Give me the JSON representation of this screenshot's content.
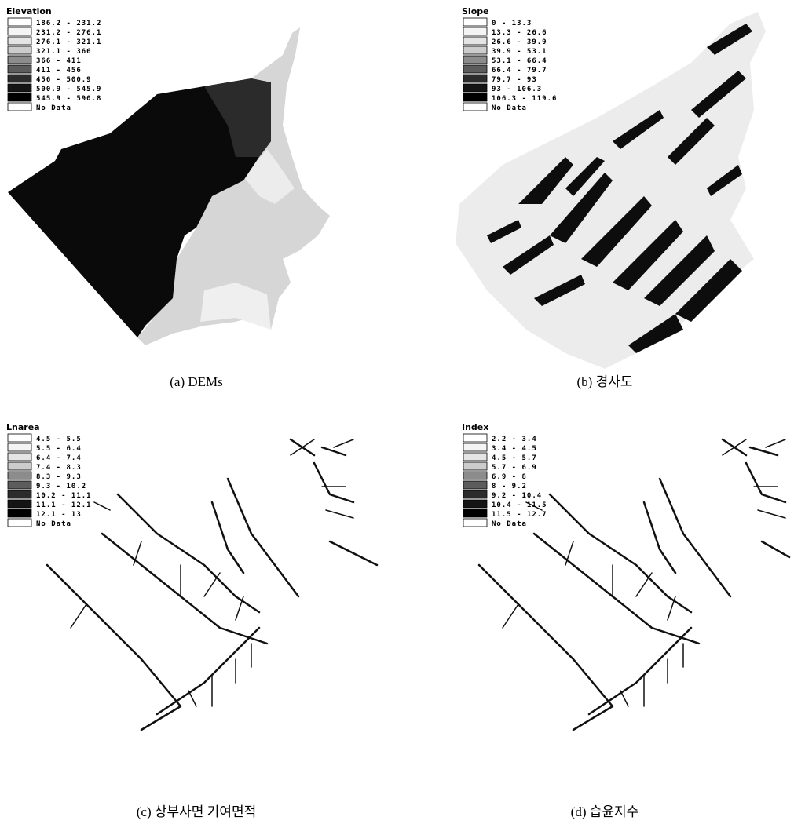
{
  "panels": [
    {
      "legend": {
        "title": "Elevation",
        "items": [
          {
            "label": "186.2 - 231.2",
            "color": "#ffffff"
          },
          {
            "label": "231.2 - 276.1",
            "color": "#f4f4f4"
          },
          {
            "label": "276.1 - 321.1",
            "color": "#e4e4e4"
          },
          {
            "label": "321.1 - 366",
            "color": "#cccccc"
          },
          {
            "label": "366 - 411",
            "color": "#8c8c8c"
          },
          {
            "label": "411 - 456",
            "color": "#5c5c5c"
          },
          {
            "label": "456 - 500.9",
            "color": "#2c2c2c"
          },
          {
            "label": "500.9 - 545.9",
            "color": "#151515"
          },
          {
            "label": "545.9 - 590.8",
            "color": "#000000"
          },
          {
            "label": "No Data",
            "color": "#ffffff"
          }
        ]
      },
      "caption": "(a) DEMs"
    },
    {
      "legend": {
        "title": "Slope",
        "items": [
          {
            "label": "0 - 13.3",
            "color": "#ffffff"
          },
          {
            "label": "13.3 - 26.6",
            "color": "#f4f4f4"
          },
          {
            "label": "26.6 - 39.9",
            "color": "#e4e4e4"
          },
          {
            "label": "39.9 - 53.1",
            "color": "#cccccc"
          },
          {
            "label": "53.1 - 66.4",
            "color": "#8c8c8c"
          },
          {
            "label": "66.4 - 79.7",
            "color": "#5c5c5c"
          },
          {
            "label": "79.7 - 93",
            "color": "#2c2c2c"
          },
          {
            "label": "93 - 106.3",
            "color": "#151515"
          },
          {
            "label": "106.3 - 119.6",
            "color": "#000000"
          },
          {
            "label": "No Data",
            "color": "#ffffff"
          }
        ]
      },
      "caption": "(b) 경사도"
    },
    {
      "legend": {
        "title": "Lnarea",
        "items": [
          {
            "label": "4.5 - 5.5",
            "color": "#ffffff"
          },
          {
            "label": "5.5 - 6.4",
            "color": "#f4f4f4"
          },
          {
            "label": "6.4 - 7.4",
            "color": "#e4e4e4"
          },
          {
            "label": "7.4 - 8.3",
            "color": "#cccccc"
          },
          {
            "label": "8.3 - 9.3",
            "color": "#8c8c8c"
          },
          {
            "label": "9.3 - 10.2",
            "color": "#5c5c5c"
          },
          {
            "label": "10.2 - 11.1",
            "color": "#2c2c2c"
          },
          {
            "label": "11.1 - 12.1",
            "color": "#151515"
          },
          {
            "label": "12.1 - 13",
            "color": "#000000"
          },
          {
            "label": "No Data",
            "color": "#ffffff"
          }
        ]
      },
      "caption": "(c) 상부사면 기여면적"
    },
    {
      "legend": {
        "title": "Index",
        "items": [
          {
            "label": "2.2 - 3.4",
            "color": "#ffffff"
          },
          {
            "label": "3.4 - 4.5",
            "color": "#f4f4f4"
          },
          {
            "label": "4.5 - 5.7",
            "color": "#e4e4e4"
          },
          {
            "label": "5.7 - 6.9",
            "color": "#cccccc"
          },
          {
            "label": "6.9 - 8",
            "color": "#8c8c8c"
          },
          {
            "label": "8 - 9.2",
            "color": "#5c5c5c"
          },
          {
            "label": "9.2 - 10.4",
            "color": "#2c2c2c"
          },
          {
            "label": "10.4 - 11.5",
            "color": "#151515"
          },
          {
            "label": "11.5 - 12.7",
            "color": "#000000"
          },
          {
            "label": "No Data",
            "color": "#ffffff"
          }
        ]
      },
      "caption": "(d) 습윤지수"
    }
  ]
}
